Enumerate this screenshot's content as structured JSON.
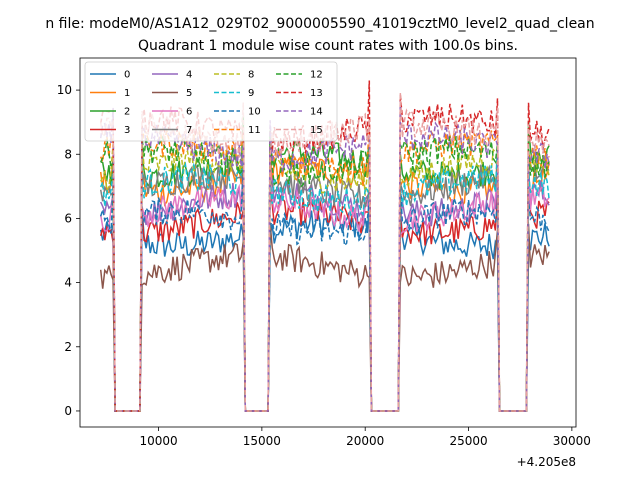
{
  "chart_data": {
    "type": "line",
    "suptitle": "n file: modeM0/AS1A12_029T02_9000005590_41019cztM0_level2_quad_clean",
    "title": "Quadrant 1 module wise count rates with 100.0s bins.",
    "xlabel": "",
    "ylabel": "",
    "x_offset_label": "+4.205e8",
    "xlim": [
      6200,
      30200
    ],
    "ylim": [
      -0.5,
      11
    ],
    "x_ticks": [
      10000,
      15000,
      20000,
      25000,
      30000
    ],
    "x_tick_labels": [
      "10000",
      "15000",
      "20000",
      "25000",
      "30000"
    ],
    "y_ticks": [
      0,
      2,
      4,
      6,
      8,
      10
    ],
    "y_tick_labels": [
      "0",
      "2",
      "4",
      "6",
      "8",
      "10"
    ],
    "x_start": 7200,
    "x_end": 28900,
    "bin": 100,
    "gaps": [
      [
        7900,
        9100
      ],
      [
        14200,
        15300
      ],
      [
        20300,
        21600
      ],
      [
        26500,
        27800
      ]
    ],
    "gap_value": 0,
    "legend_position": "upper-left",
    "series": [
      {
        "name": "0",
        "color": "#1f77b4",
        "dash": "solid",
        "level": 5.5
      },
      {
        "name": "1",
        "color": "#ff7f0e",
        "dash": "solid",
        "level": 7.2
      },
      {
        "name": "2",
        "color": "#2ca02c",
        "dash": "solid",
        "level": 7.7
      },
      {
        "name": "3",
        "color": "#d62728",
        "dash": "solid",
        "level": 5.9
      },
      {
        "name": "4",
        "color": "#9467bd",
        "dash": "solid",
        "level": 6.5
      },
      {
        "name": "5",
        "color": "#8c564b",
        "dash": "solid",
        "level": 4.5
      },
      {
        "name": "6",
        "color": "#e377c2",
        "dash": "solid",
        "level": 6.3
      },
      {
        "name": "7",
        "color": "#7f7f7f",
        "dash": "solid",
        "level": 7.0
      },
      {
        "name": "8",
        "color": "#bcbd22",
        "dash": "dashed",
        "level": 7.5
      },
      {
        "name": "9",
        "color": "#17becf",
        "dash": "dashed",
        "level": 6.9
      },
      {
        "name": "10",
        "color": "#1f77b4",
        "dash": "dashed",
        "level": 5.9
      },
      {
        "name": "11",
        "color": "#ff7f0e",
        "dash": "dashed",
        "level": 8.0
      },
      {
        "name": "12",
        "color": "#2ca02c",
        "dash": "dashed",
        "level": 7.8
      },
      {
        "name": "13",
        "color": "#d62728",
        "dash": "dashed",
        "level": 8.8
      },
      {
        "name": "14",
        "color": "#9467bd",
        "dash": "dashed",
        "level": 8.2
      },
      {
        "name": "15",
        "color": "#e8a0a0",
        "dash": "dashed",
        "level": 8.6
      }
    ]
  }
}
